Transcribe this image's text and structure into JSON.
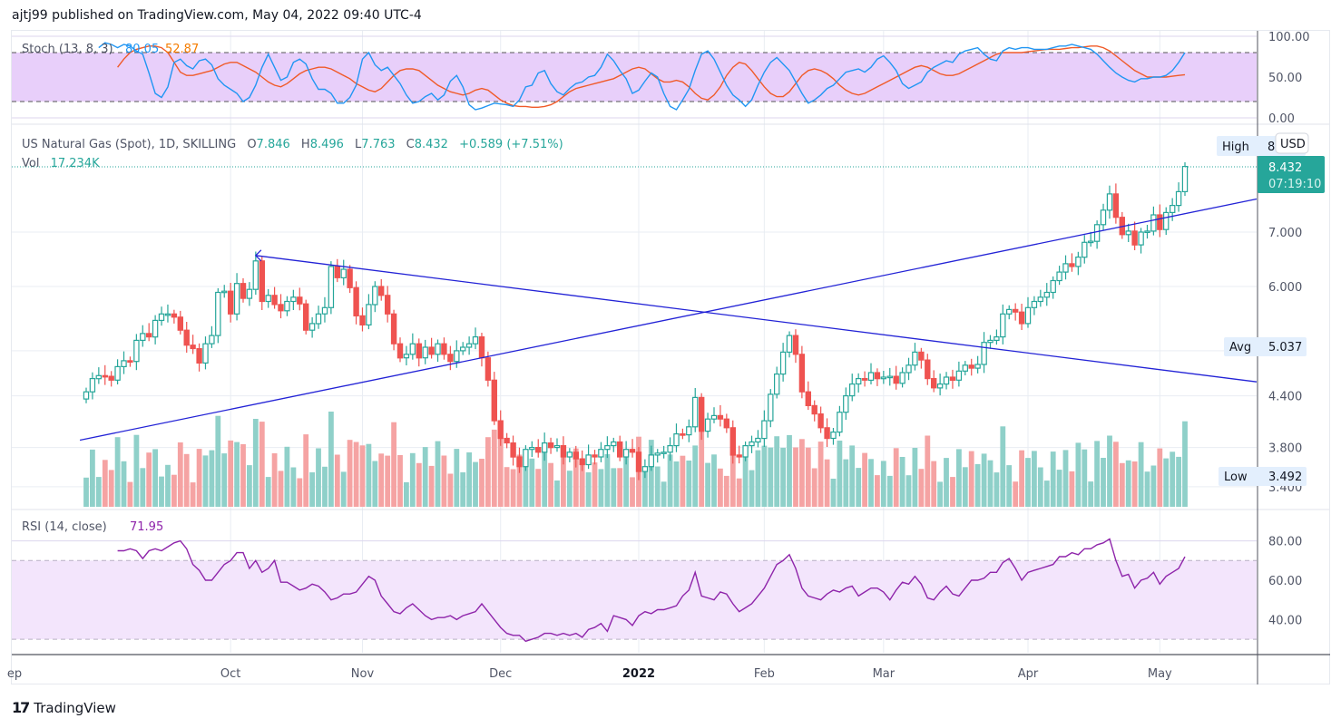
{
  "header": {
    "publish_text": "ajtj99 published on TradingView.com, May 04, 2022 09:40 UTC-4"
  },
  "footer": {
    "brand": "TradingView",
    "logo_glyph": "17"
  },
  "colors": {
    "up": "#26a69a",
    "down": "#ef5350",
    "vol_up": "#8fd0c9",
    "vol_down": "#f5a3a3",
    "trend": "#2323d6",
    "stoch_k": "#2196f3",
    "stoch_d": "#f05a28",
    "rsi": "#8e24aa",
    "stoch_band": "#e8cffa",
    "rsi_band": "#f3e5fc",
    "price_tag": "#26a69a"
  },
  "chart_data": {
    "type": "candlestick",
    "title": "US Natural Gas (Spot), 1D, SKILLING",
    "legend": {
      "symbol": "US Natural Gas (Spot), 1D, SKILLING",
      "O_label": "O",
      "O": "7.846",
      "H_label": "H",
      "H": "8.496",
      "L_label": "L",
      "L": "7.763",
      "C_label": "C",
      "C": "8.432",
      "change": "+0.589 (+7.51%)",
      "vol_label": "Vol",
      "vol": "17.234K"
    },
    "price_axis": {
      "scale": "log",
      "ticks": [
        "7.000",
        "6.000",
        "4.400",
        "3.800",
        "3.400"
      ],
      "tick_values": [
        7.0,
        6.0,
        5.0,
        4.4,
        3.8,
        3.4
      ],
      "currency": "USD"
    },
    "markers": {
      "high": {
        "label": "High",
        "value": "8."
      },
      "last": {
        "value": "8.432",
        "countdown": "07:19:10"
      },
      "avg": {
        "label": "Avg",
        "value": "5.037"
      },
      "low": {
        "label": "Low",
        "value": "3.492"
      }
    },
    "x_axis": {
      "labels": [
        {
          "text": "ep",
          "index": -1,
          "bold": false
        },
        {
          "text": "Oct",
          "index": 23,
          "bold": false
        },
        {
          "text": "Nov",
          "index": 44,
          "bold": false
        },
        {
          "text": "Dec",
          "index": 66,
          "bold": false
        },
        {
          "text": "2022",
          "index": 88,
          "bold": true
        },
        {
          "text": "Feb",
          "index": 108,
          "bold": false
        },
        {
          "text": "Mar",
          "index": 127,
          "bold": false
        },
        {
          "text": "Apr",
          "index": 150,
          "bold": false
        },
        {
          "text": "May",
          "index": 171,
          "bold": false
        }
      ]
    },
    "candles_close": [
      4.45,
      4.62,
      4.66,
      4.65,
      4.6,
      4.78,
      4.86,
      4.85,
      5.15,
      5.25,
      5.2,
      5.45,
      5.55,
      5.55,
      5.5,
      5.3,
      5.08,
      5.03,
      4.83,
      5.1,
      5.22,
      5.9,
      5.92,
      5.55,
      6.05,
      5.8,
      5.95,
      6.45,
      5.75,
      5.85,
      5.7,
      5.6,
      5.75,
      5.82,
      5.71,
      5.3,
      5.4,
      5.55,
      5.65,
      6.35,
      6.15,
      6.3,
      5.98,
      5.52,
      5.38,
      5.7,
      6.0,
      5.85,
      5.55,
      5.1,
      4.9,
      4.95,
      5.1,
      4.9,
      5.05,
      4.95,
      5.1,
      4.95,
      4.85,
      5.0,
      5.05,
      5.1,
      5.2,
      4.9,
      4.6,
      4.1,
      3.9,
      3.85,
      3.7,
      3.6,
      3.78,
      3.8,
      3.75,
      3.85,
      3.8,
      3.82,
      3.7,
      3.75,
      3.68,
      3.62,
      3.72,
      3.7,
      3.78,
      3.82,
      3.86,
      3.7,
      3.78,
      3.75,
      3.55,
      3.6,
      3.72,
      3.74,
      3.75,
      3.82,
      3.95,
      3.94,
      4.03,
      4.38,
      3.98,
      4.12,
      4.16,
      4.12,
      4.02,
      3.72,
      3.7,
      3.82,
      3.86,
      3.9,
      4.1,
      4.42,
      4.68,
      4.98,
      5.22,
      4.95,
      4.45,
      4.28,
      4.18,
      4.02,
      3.9,
      3.97,
      4.2,
      4.4,
      4.55,
      4.62,
      4.6,
      4.7,
      4.62,
      4.64,
      4.65,
      4.56,
      4.7,
      4.8,
      4.98,
      4.87,
      4.62,
      4.5,
      4.55,
      4.64,
      4.6,
      4.72,
      4.8,
      4.76,
      4.81,
      5.12,
      5.15,
      5.2,
      5.55,
      5.62,
      5.58,
      5.4,
      5.65,
      5.75,
      5.82,
      5.9,
      6.1,
      6.25,
      6.4,
      6.35,
      6.52,
      6.8,
      6.82,
      7.15,
      7.45,
      7.8,
      7.3,
      6.95,
      7.02,
      6.75,
      7.0,
      7.02,
      7.35,
      7.05,
      7.4,
      7.55,
      7.85,
      8.432
    ],
    "indicators": {
      "stoch": {
        "label": "Stoch (13, 8, 3)",
        "k_value": "80.05",
        "d_value": "52.87",
        "ticks": [
          "100.00",
          "50.00",
          "0.00"
        ],
        "band": [
          20,
          80
        ],
        "k": [
          86,
          92,
          90,
          86,
          90,
          88,
          82,
          78,
          55,
          30,
          25,
          38,
          68,
          72,
          64,
          60,
          70,
          72,
          65,
          48,
          40,
          35,
          30,
          20,
          25,
          40,
          62,
          78,
          62,
          46,
          50,
          68,
          72,
          66,
          48,
          35,
          35,
          30,
          18,
          18,
          25,
          40,
          72,
          80,
          65,
          58,
          62,
          52,
          42,
          28,
          18,
          20,
          26,
          30,
          22,
          28,
          45,
          52,
          38,
          16,
          10,
          12,
          15,
          18,
          17,
          16,
          14,
          22,
          38,
          40,
          55,
          58,
          42,
          32,
          28,
          36,
          42,
          44,
          50,
          52,
          62,
          78,
          70,
          58,
          48,
          30,
          34,
          45,
          55,
          50,
          30,
          14,
          10,
          22,
          35,
          58,
          78,
          82,
          72,
          56,
          40,
          28,
          22,
          14,
          22,
          40,
          56,
          68,
          74,
          66,
          58,
          44,
          30,
          18,
          22,
          28,
          36,
          40,
          48,
          56,
          58,
          60,
          56,
          62,
          72,
          76,
          68,
          58,
          42,
          36,
          40,
          44,
          56,
          62,
          66,
          70,
          68,
          78,
          82,
          84,
          86,
          78,
          72,
          70,
          82,
          86,
          84,
          86,
          86,
          84,
          84,
          84,
          86,
          88,
          88,
          90,
          88,
          86,
          84,
          78,
          70,
          62,
          55,
          50,
          46,
          44,
          48,
          48,
          50,
          50,
          52,
          58,
          68,
          80.05
        ],
        "d": [
          62,
          72,
          80,
          84,
          86,
          88,
          88,
          86,
          80,
          68,
          56,
          52,
          52,
          54,
          56,
          58,
          62,
          66,
          68,
          68,
          64,
          60,
          56,
          50,
          44,
          40,
          38,
          42,
          48,
          54,
          58,
          60,
          62,
          62,
          60,
          56,
          52,
          48,
          42,
          38,
          34,
          32,
          36,
          44,
          52,
          58,
          60,
          60,
          58,
          52,
          46,
          40,
          36,
          32,
          30,
          28,
          30,
          34,
          36,
          34,
          28,
          22,
          18,
          15,
          14,
          14,
          13,
          13,
          14,
          16,
          20,
          26,
          32,
          36,
          38,
          40,
          42,
          44,
          46,
          48,
          52,
          56,
          60,
          62,
          60,
          54,
          48,
          44,
          44,
          46,
          44,
          38,
          30,
          24,
          22,
          28,
          38,
          52,
          62,
          68,
          66,
          58,
          48,
          38,
          30,
          26,
          26,
          32,
          42,
          52,
          58,
          60,
          58,
          54,
          48,
          40,
          34,
          30,
          28,
          30,
          34,
          38,
          42,
          46,
          50,
          54,
          58,
          62,
          64,
          62,
          58,
          54,
          52,
          52,
          54,
          58,
          62,
          66,
          70,
          74,
          78,
          80,
          80,
          80,
          80,
          81,
          82,
          83,
          84,
          84,
          84,
          85,
          86,
          86,
          87,
          88,
          88,
          86,
          82,
          76,
          70,
          64,
          58,
          54,
          50,
          50,
          50,
          50,
          51,
          52,
          52.87
        ]
      },
      "rsi": {
        "label": "RSI (14, close)",
        "value": "71.95",
        "ticks": [
          "80.00",
          "60.00",
          "40.00"
        ],
        "band": [
          30,
          70
        ],
        "values": [
          75,
          75,
          76,
          75,
          71,
          75,
          76,
          75,
          77,
          79,
          80,
          76,
          68,
          65,
          60,
          60,
          64,
          68,
          70,
          74,
          74,
          66,
          70,
          64,
          66,
          70,
          59,
          59,
          57,
          55,
          56,
          58,
          57,
          54,
          50,
          51,
          53,
          53,
          54,
          58,
          62,
          60,
          52,
          48,
          44,
          43,
          46,
          48,
          45,
          42,
          40,
          41,
          41,
          42,
          40,
          42,
          43,
          44,
          48,
          44,
          40,
          36,
          33,
          32,
          32,
          29,
          30,
          31,
          33,
          33,
          32,
          33,
          32,
          33,
          31,
          35,
          36,
          38,
          34,
          42,
          41,
          40,
          37,
          42,
          44,
          43,
          45,
          45,
          46,
          47,
          52,
          55,
          64,
          52,
          51,
          50,
          54,
          53,
          48,
          44,
          46,
          48,
          52,
          56,
          62,
          68,
          70,
          73,
          66,
          56,
          52,
          51,
          50,
          53,
          55,
          54,
          56,
          57,
          52,
          54,
          56,
          56,
          54,
          50,
          55,
          59,
          58,
          62,
          58,
          51,
          50,
          54,
          57,
          53,
          52,
          56,
          60,
          60,
          61,
          64,
          64,
          69,
          71,
          66,
          60,
          64,
          65,
          66,
          67,
          68,
          72,
          72,
          74,
          73,
          76,
          76,
          78,
          79,
          81,
          70,
          62,
          63,
          56,
          60,
          61,
          64,
          58,
          62,
          64,
          66,
          71.95
        ]
      }
    },
    "trendlines": [
      {
        "name": "rising-support",
        "from_index": -1,
        "from_price": 3.88,
        "to_index": 199,
        "to_price": 8.05
      },
      {
        "name": "falling-resistance",
        "from_index": 27,
        "from_price": 6.55,
        "to_index": 199,
        "to_price": 4.45
      }
    ]
  }
}
